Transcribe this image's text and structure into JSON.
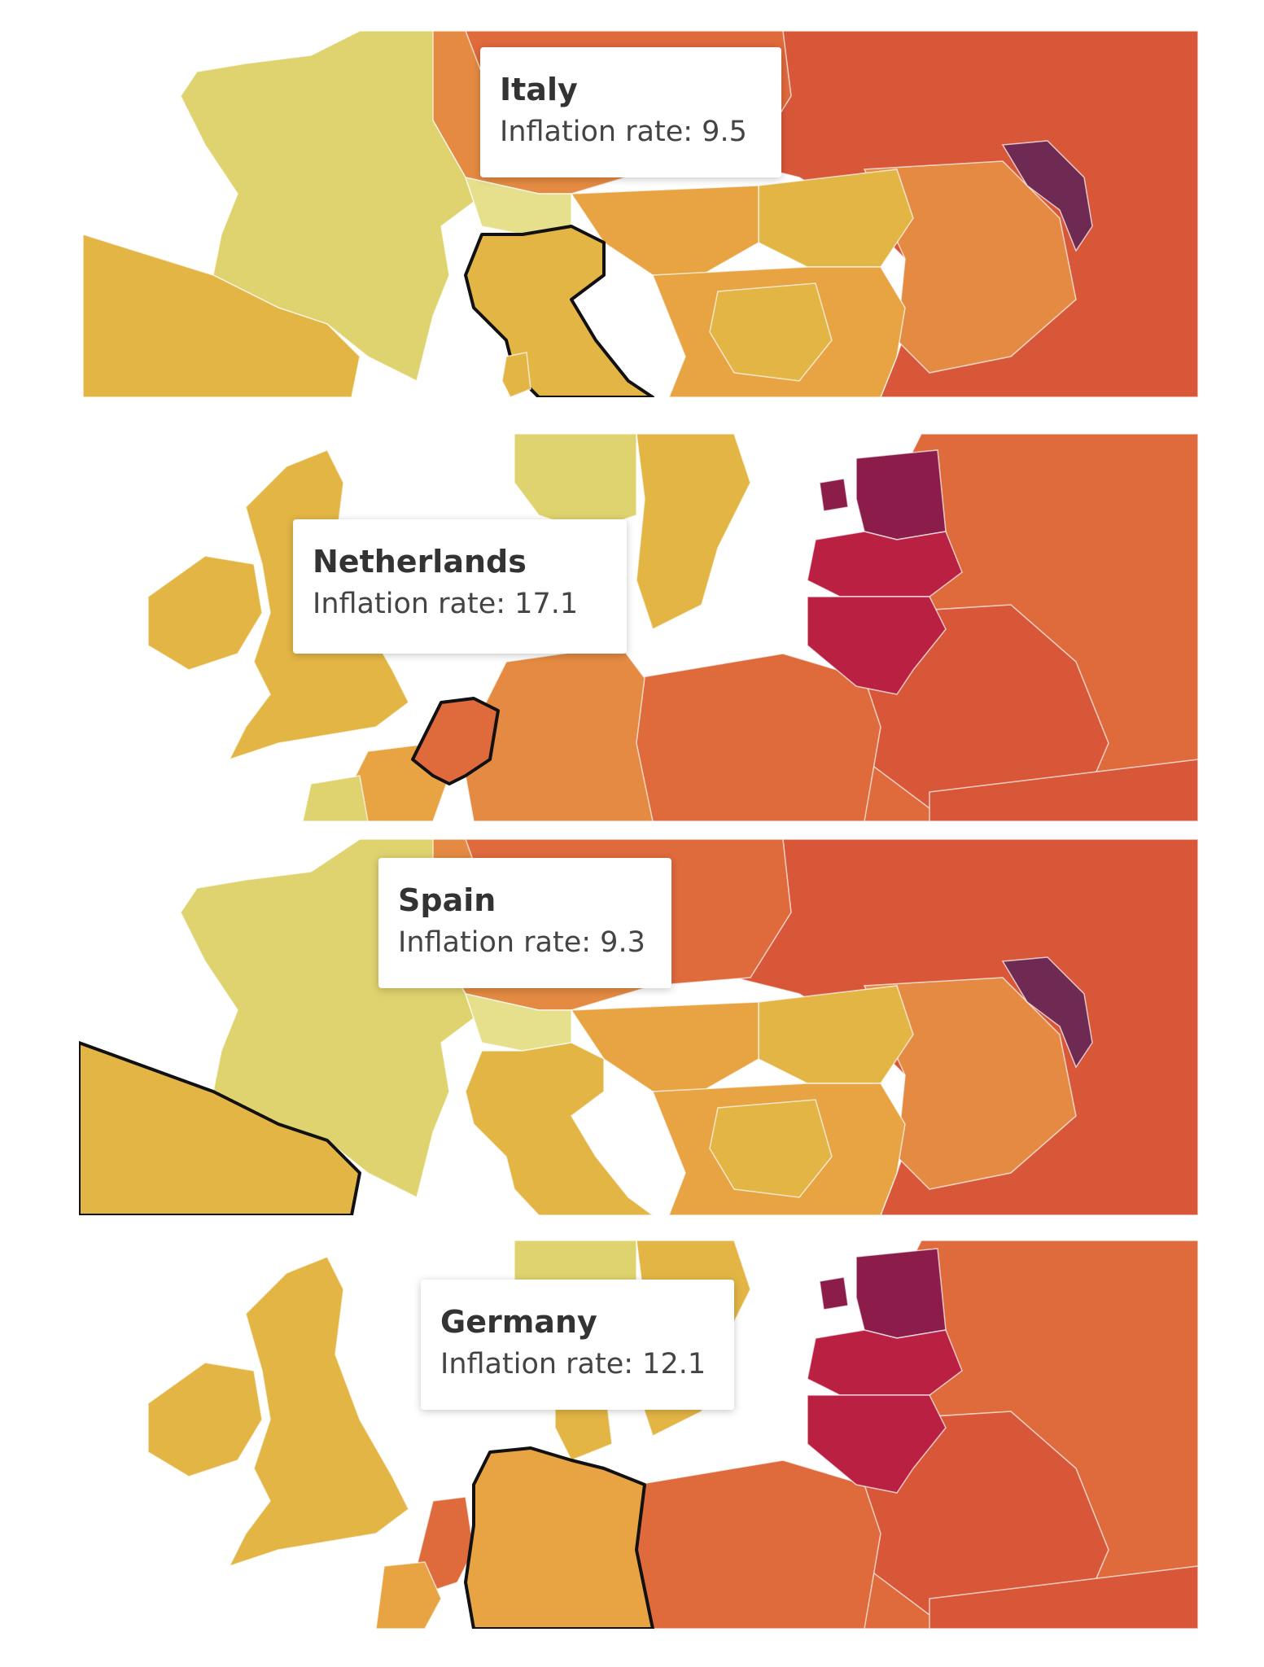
{
  "colors": {
    "very_low": "#e6df8c",
    "low": "#ded36e",
    "medium_low": "#e3b545",
    "medium": "#e8a343",
    "medium_high": "#e48a42",
    "high": "#df6a3c",
    "very_high": "#d95739",
    "baltic": "#ba2042",
    "estonia": "#8c1d4b",
    "moldova": "#6e2a52",
    "water": "#ffffff",
    "highlight_border": "#111111"
  },
  "panels": [
    {
      "country": "Italy",
      "label": "Inflation rate: 9.5",
      "rate": 9.5
    },
    {
      "country": "Netherlands",
      "label": "Inflation rate: 17.1",
      "rate": 17.1
    },
    {
      "country": "Spain",
      "label": "Inflation rate: 9.3",
      "rate": 9.3
    },
    {
      "country": "Germany",
      "label": "Inflation rate: 12.1",
      "rate": 12.1
    }
  ]
}
